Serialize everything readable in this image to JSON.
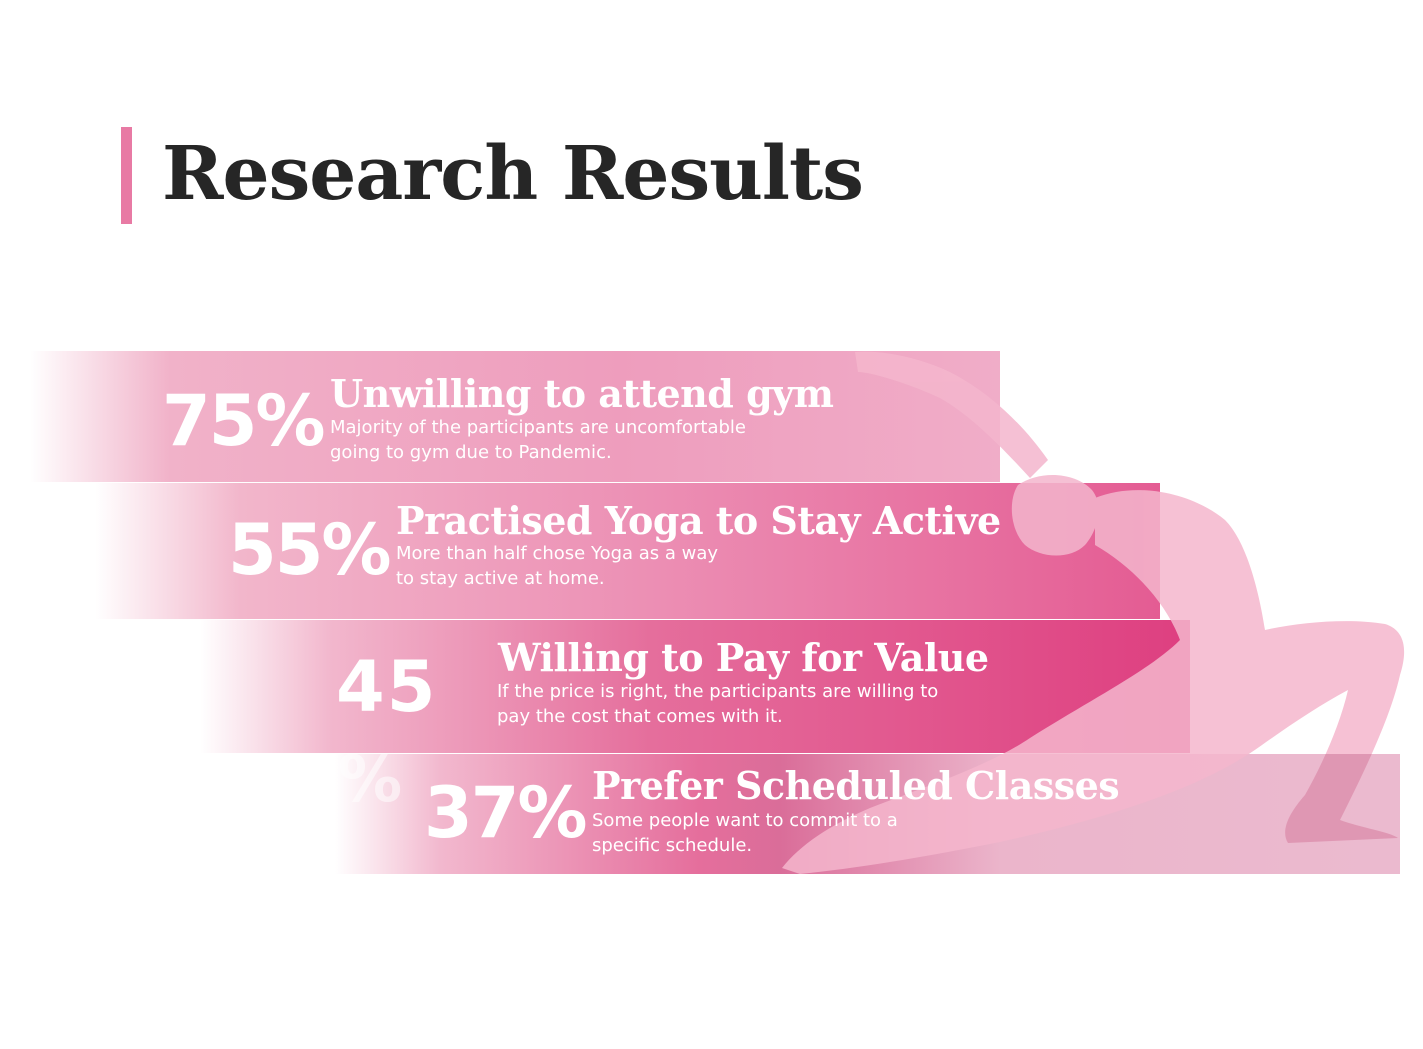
{
  "page": {
    "title": "Research Results",
    "accent_color": "#e87aa4"
  },
  "stats": [
    {
      "value": "75%",
      "heading": "Unwilling to attend gym",
      "description": "Majority of the participants are uncomfortable going to gym due to Pandemic."
    },
    {
      "value": "55%",
      "heading": "Practised Yoga to Stay Active",
      "description": "More than half chose Yoga as a way to stay active at home."
    },
    {
      "value": "45",
      "heading": "Willing to Pay for Value",
      "description": "If the price is right, the participants are willing to pay the cost that comes with it."
    },
    {
      "value": "37%",
      "heading": "Prefer Scheduled Classes",
      "description": "Some people want to commit to a specific schedule."
    }
  ],
  "ghost_text": "%",
  "illustration": {
    "icon": "yoga-pose-silhouette-icon",
    "color": "#f4b6cd"
  }
}
